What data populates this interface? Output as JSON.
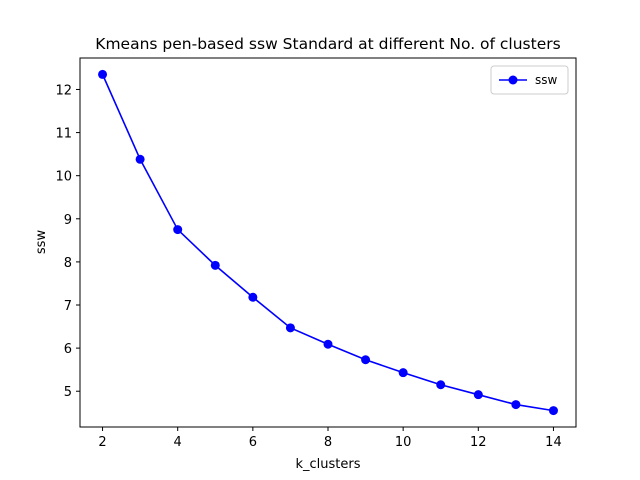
{
  "chart_data": {
    "type": "line",
    "title": "Kmeans pen-based ssw Standard at different No. of clusters",
    "xlabel": "k_clusters",
    "ylabel": "ssw",
    "xlim": [
      1.4,
      14.6
    ],
    "ylim": [
      4.17,
      12.73
    ],
    "xticks": [
      2,
      4,
      6,
      8,
      10,
      12,
      14
    ],
    "yticks": [
      5,
      6,
      7,
      8,
      9,
      10,
      11,
      12
    ],
    "grid": false,
    "legend": "top-right",
    "series": [
      {
        "name": "ssw",
        "color": "#0000ff",
        "marker": "circle",
        "x": [
          2,
          3,
          4,
          5,
          6,
          7,
          8,
          9,
          10,
          11,
          12,
          13,
          14
        ],
        "y": [
          12.35,
          10.38,
          8.75,
          7.92,
          7.18,
          6.47,
          6.09,
          5.73,
          5.43,
          5.15,
          4.92,
          4.69,
          4.55
        ]
      }
    ]
  }
}
